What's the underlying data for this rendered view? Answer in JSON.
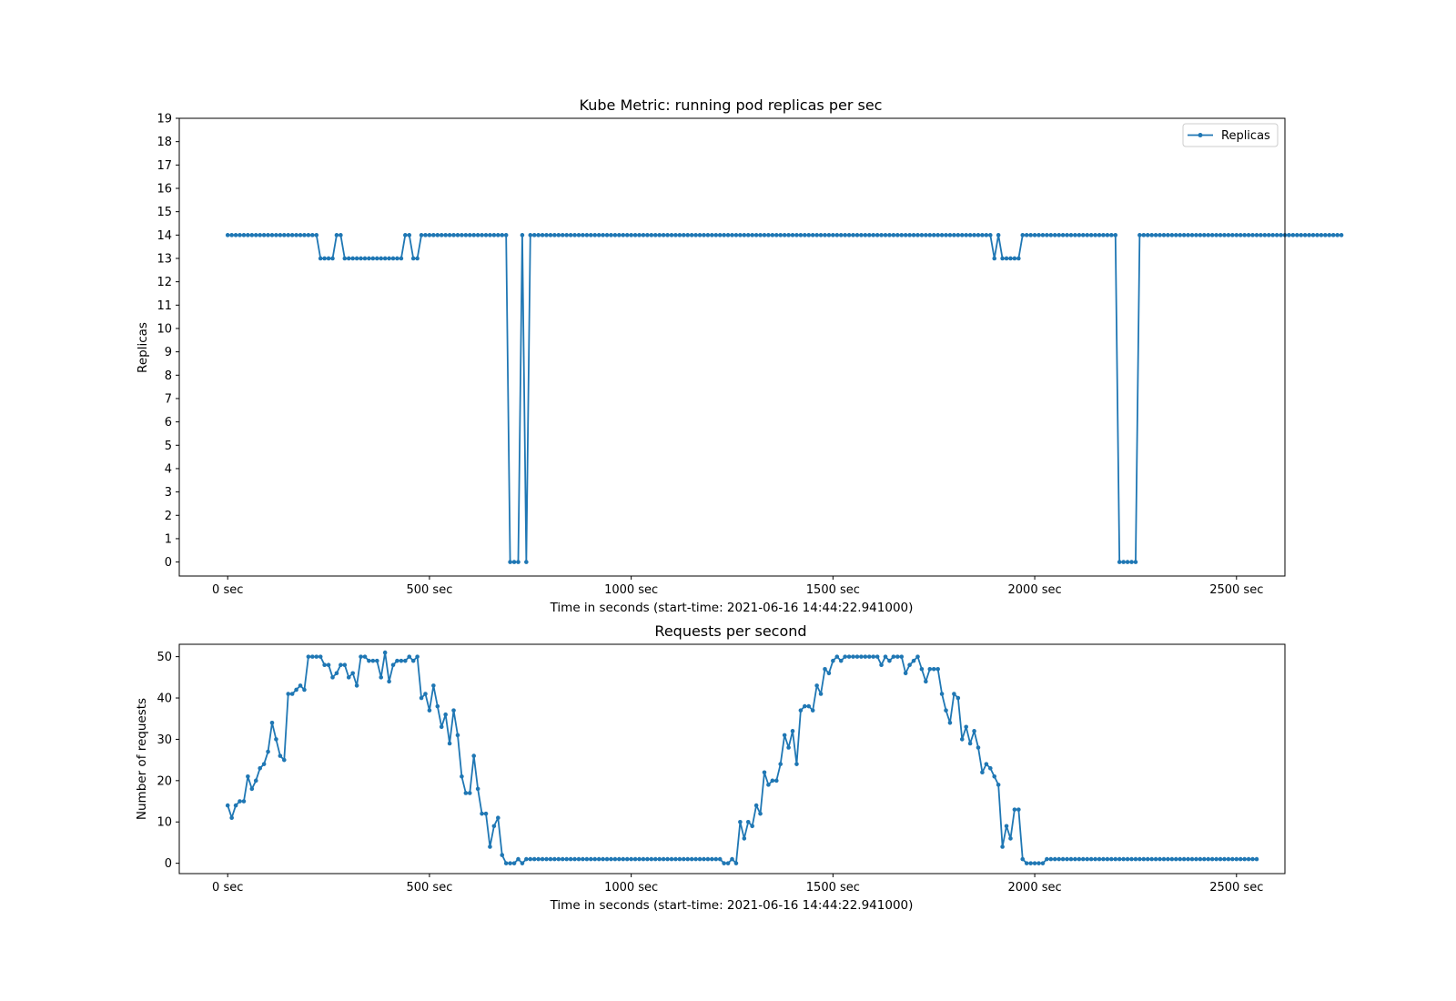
{
  "colors": {
    "series": "#1f77b4"
  },
  "chart_data": [
    {
      "type": "line",
      "title": "Kube Metric: running pod replicas per sec",
      "xlabel": "Time in seconds (start-time: 2021-06-16 14:44:22.941000)",
      "ylabel": "Replicas",
      "xlim": [
        -120,
        2620
      ],
      "ylim": [
        -0.6,
        19
      ],
      "xticks": [
        0,
        500,
        1000,
        1500,
        2000,
        2500
      ],
      "xtick_labels": [
        "0 sec",
        "500 sec",
        "1000 sec",
        "1500 sec",
        "2000 sec",
        "2500 sec"
      ],
      "yticks": [
        0,
        1,
        2,
        3,
        4,
        5,
        6,
        7,
        8,
        9,
        10,
        11,
        12,
        13,
        14,
        15,
        16,
        17,
        18,
        19
      ],
      "ytick_labels": [
        "0",
        "1",
        "2",
        "3",
        "4",
        "5",
        "6",
        "7",
        "8",
        "9",
        "10",
        "11",
        "12",
        "13",
        "14",
        "15",
        "16",
        "17",
        "18",
        "19"
      ],
      "grid": false,
      "legend": {
        "placement": "top-right",
        "entries": [
          "Replicas"
        ]
      },
      "x_start": 0,
      "x_step": 10,
      "series": [
        {
          "name": "Replicas",
          "values": [
            14,
            14,
            14,
            14,
            14,
            14,
            14,
            14,
            14,
            14,
            14,
            14,
            14,
            14,
            14,
            14,
            14,
            14,
            14,
            14,
            14,
            14,
            14,
            13,
            13,
            13,
            13,
            14,
            14,
            13,
            13,
            13,
            13,
            13,
            13,
            13,
            13,
            13,
            13,
            13,
            13,
            13,
            13,
            13,
            14,
            14,
            13,
            13,
            14,
            14,
            14,
            14,
            14,
            14,
            14,
            14,
            14,
            14,
            14,
            14,
            14,
            14,
            14,
            14,
            14,
            14,
            14,
            14,
            14,
            14,
            0,
            0,
            0,
            14,
            0,
            14,
            14,
            14,
            14,
            14,
            14,
            14,
            14,
            14,
            14,
            14,
            14,
            14,
            14,
            14,
            14,
            14,
            14,
            14,
            14,
            14,
            14,
            14,
            14,
            14,
            14,
            14,
            14,
            14,
            14,
            14,
            14,
            14,
            14,
            14,
            14,
            14,
            14,
            14,
            14,
            14,
            14,
            14,
            14,
            14,
            14,
            14,
            14,
            14,
            14,
            14,
            14,
            14,
            14,
            14,
            14,
            14,
            14,
            14,
            14,
            14,
            14,
            14,
            14,
            14,
            14,
            14,
            14,
            14,
            14,
            14,
            14,
            14,
            14,
            14,
            14,
            14,
            14,
            14,
            14,
            14,
            14,
            14,
            14,
            14,
            14,
            14,
            14,
            14,
            14,
            14,
            14,
            14,
            14,
            14,
            14,
            14,
            14,
            14,
            14,
            14,
            14,
            14,
            14,
            14,
            14,
            14,
            14,
            14,
            14,
            14,
            14,
            14,
            14,
            14,
            13,
            14,
            13,
            13,
            13,
            13,
            13,
            14,
            14,
            14,
            14,
            14,
            14,
            14,
            14,
            14,
            14,
            14,
            14,
            14,
            14,
            14,
            14,
            14,
            14,
            14,
            14,
            14,
            14,
            14,
            14,
            0,
            0,
            0,
            0,
            0,
            14,
            14,
            14,
            14,
            14,
            14,
            14,
            14,
            14,
            14,
            14,
            14,
            14,
            14,
            14,
            14,
            14,
            14,
            14,
            14,
            14,
            14,
            14,
            14,
            14,
            14,
            14,
            14,
            14,
            14,
            14,
            14,
            14,
            14,
            14,
            14,
            14,
            14,
            14,
            14,
            14,
            14,
            14,
            14,
            14,
            14,
            14,
            14,
            14,
            14,
            14
          ]
        }
      ]
    },
    {
      "type": "line",
      "title": "Requests per second",
      "xlabel": "Time in seconds (start-time: 2021-06-16 14:44:22.941000)",
      "ylabel": "Number of requests",
      "xlim": [
        -120,
        2620
      ],
      "ylim": [
        -2.5,
        53
      ],
      "xticks": [
        0,
        500,
        1000,
        1500,
        2000,
        2500
      ],
      "xtick_labels": [
        "0 sec",
        "500 sec",
        "1000 sec",
        "1500 sec",
        "2000 sec",
        "2500 sec"
      ],
      "yticks": [
        0,
        10,
        20,
        30,
        40,
        50
      ],
      "ytick_labels": [
        "0",
        "10",
        "20",
        "30",
        "40",
        "50"
      ],
      "grid": false,
      "x_start": 0,
      "x_step": 10,
      "series": [
        {
          "name": "",
          "values": [
            14,
            11,
            14,
            15,
            15,
            21,
            18,
            20,
            23,
            24,
            27,
            34,
            30,
            26,
            25,
            41,
            41,
            42,
            43,
            42,
            50,
            50,
            50,
            50,
            48,
            48,
            45,
            46,
            48,
            48,
            45,
            46,
            43,
            50,
            50,
            49,
            49,
            49,
            45,
            51,
            44,
            48,
            49,
            49,
            49,
            50,
            49,
            50,
            40,
            41,
            37,
            43,
            38,
            33,
            36,
            29,
            37,
            31,
            21,
            17,
            17,
            26,
            18,
            12,
            12,
            4,
            9,
            11,
            2,
            0,
            0,
            0,
            1,
            0,
            1,
            1,
            1,
            1,
            1,
            1,
            1,
            1,
            1,
            1,
            1,
            1,
            1,
            1,
            1,
            1,
            1,
            1,
            1,
            1,
            1,
            1,
            1,
            1,
            1,
            1,
            1,
            1,
            1,
            1,
            1,
            1,
            1,
            1,
            1,
            1,
            1,
            1,
            1,
            1,
            1,
            1,
            1,
            1,
            1,
            1,
            1,
            1,
            1,
            0,
            0,
            1,
            0,
            10,
            6,
            10,
            9,
            14,
            12,
            22,
            19,
            20,
            20,
            24,
            31,
            28,
            32,
            24,
            37,
            38,
            38,
            37,
            43,
            41,
            47,
            46,
            49,
            50,
            49,
            50,
            50,
            50,
            50,
            50,
            50,
            50,
            50,
            50,
            48,
            50,
            49,
            50,
            50,
            50,
            46,
            48,
            49,
            50,
            47,
            44,
            47,
            47,
            47,
            41,
            37,
            34,
            41,
            40,
            30,
            33,
            29,
            32,
            28,
            22,
            24,
            23,
            21,
            19,
            4,
            9,
            6,
            13,
            13,
            1,
            0,
            0,
            0,
            0,
            0,
            1,
            1,
            1,
            1,
            1,
            1,
            1,
            1,
            1,
            1,
            1,
            1,
            1,
            1,
            1,
            1,
            1,
            1,
            1,
            1,
            1,
            1,
            1,
            1,
            1,
            1,
            1,
            1,
            1,
            1,
            1,
            1,
            1,
            1,
            1,
            1,
            1,
            1,
            1,
            1,
            1,
            1,
            1,
            1,
            1,
            1,
            1,
            1,
            1,
            1,
            1,
            1,
            1
          ]
        }
      ]
    }
  ]
}
